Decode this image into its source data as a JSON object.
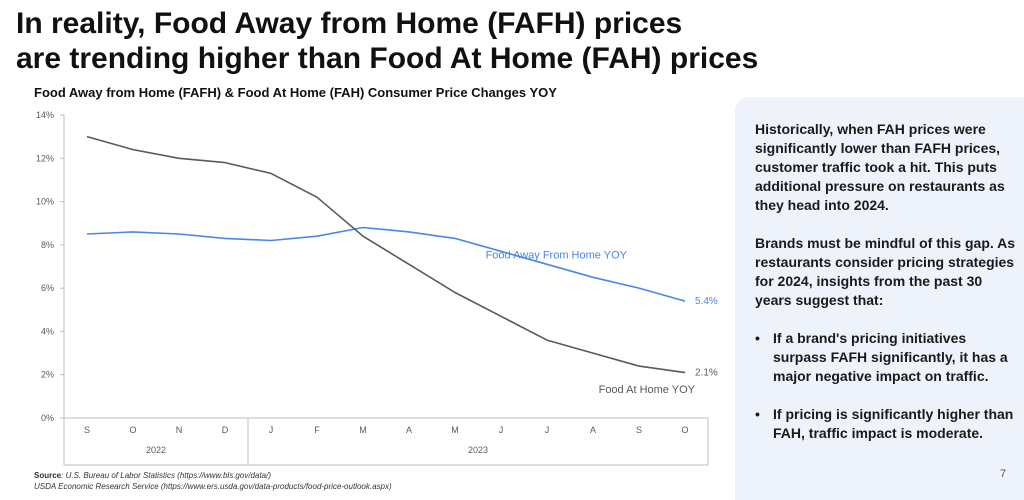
{
  "headline": {
    "line1": "In reality, Food Away from Home (FAFH) prices",
    "line2": "are trending higher than Food At Home (FAH) prices"
  },
  "chart_data": {
    "type": "line",
    "title": "Food Away from Home (FAFH) & Food At Home (FAH) Consumer Price Changes YOY",
    "xlabel": "",
    "ylabel": "",
    "categories": [
      "S",
      "O",
      "N",
      "D",
      "J",
      "F",
      "M",
      "A",
      "M",
      "J",
      "J",
      "A",
      "S",
      "O"
    ],
    "year_groups": [
      {
        "label": "2022",
        "start": 0,
        "end": 3
      },
      {
        "label": "2023",
        "start": 4,
        "end": 13
      }
    ],
    "ylim": [
      0,
      14
    ],
    "yticks": [
      0,
      2,
      4,
      6,
      8,
      10,
      12,
      14
    ],
    "ytick_labels": [
      "0%",
      "2%",
      "4%",
      "6%",
      "8%",
      "10%",
      "12%",
      "14%"
    ],
    "grid": false,
    "series": [
      {
        "name": "Food Away From Home YOY",
        "color": "#4a86e8",
        "values": [
          8.5,
          8.6,
          8.5,
          8.3,
          8.2,
          8.4,
          8.8,
          8.6,
          8.3,
          7.7,
          7.1,
          6.5,
          6.0,
          5.4
        ],
        "end_label": "5.4%"
      },
      {
        "name": "Food At Home YOY",
        "color": "#595959",
        "values": [
          13.0,
          12.4,
          12.0,
          11.8,
          11.3,
          10.2,
          8.4,
          7.1,
          5.8,
          4.7,
          3.6,
          3.0,
          2.4,
          2.1
        ],
        "end_label": "2.1%"
      }
    ]
  },
  "source": {
    "label": "Source",
    "line1": ": U.S. Bureau of Labor Statistics (https://www.bls.gov/data/)",
    "line2": "USDA Economic Research Service (https://www.ers.usda.gov/data-products/food-price-outlook.aspx)"
  },
  "panel": {
    "paragraph1": "Historically, when FAH prices were significantly lower than FAFH prices, customer traffic took a hit. This puts additional pressure on restaurants as they head into 2024.",
    "paragraph2": "Brands must be mindful of this gap. As restaurants consider pricing strategies for 2024, insights from the past 30 years suggest that:",
    "bullets": [
      "If a brand's pricing initiatives surpass FAFH significantly, it has a major negative impact on traffic.",
      "If pricing is significantly higher than FAH, traffic impact is moderate."
    ]
  },
  "page_number": "7"
}
